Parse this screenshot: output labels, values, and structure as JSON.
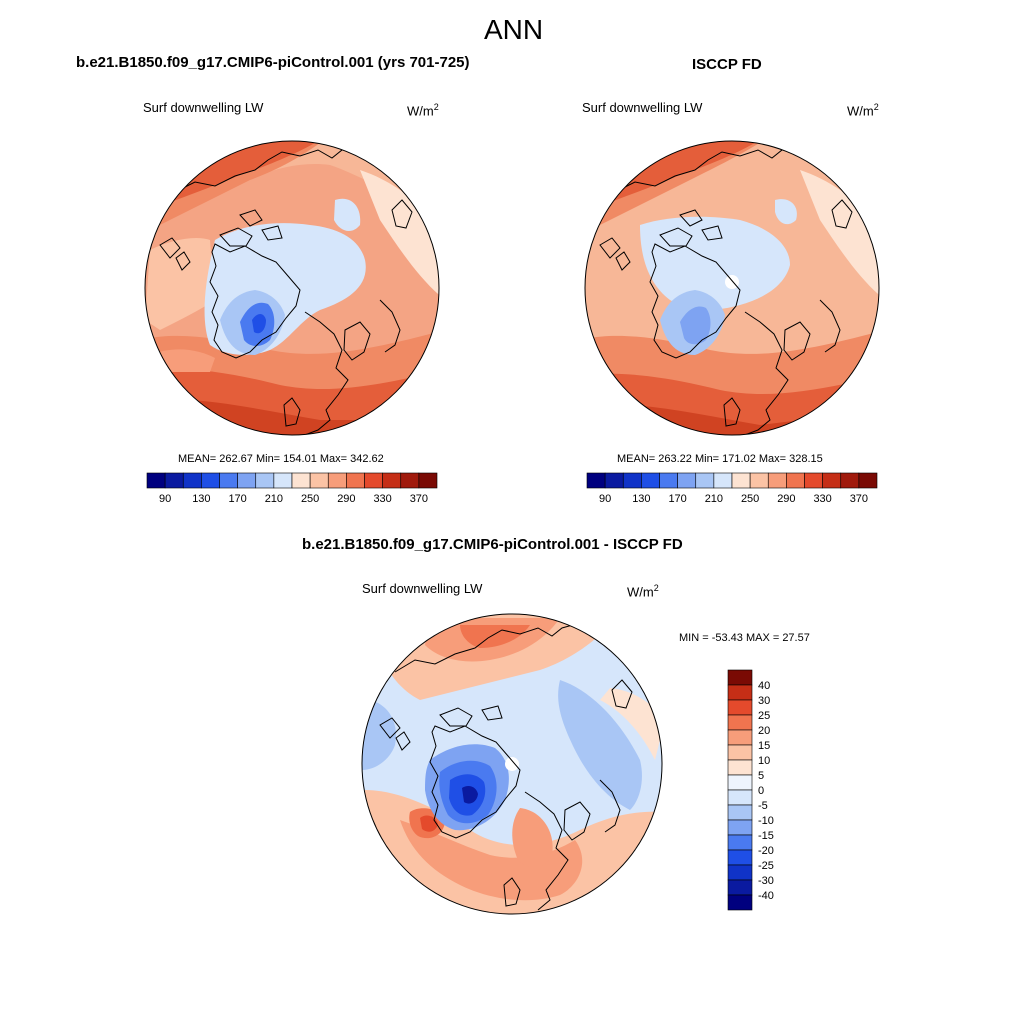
{
  "page_title": "ANN",
  "panels": [
    {
      "title": "b.e21.B1850.f09_g17.CMIP6-piControl.001 (yrs 701-725)",
      "variable": "Surf downwelling LW",
      "units_base": "W/m",
      "units_exp": "2",
      "stats": "MEAN= 262.67  Min= 154.01  Max= 342.62"
    },
    {
      "title": "ISCCP FD",
      "variable": "Surf downwelling LW",
      "units_base": "W/m",
      "units_exp": "2",
      "stats": "MEAN= 263.22  Min= 171.02  Max= 328.15"
    },
    {
      "title": "b.e21.B1850.f09_g17.CMIP6-piControl.001 - ISCCP FD",
      "variable": "Surf downwelling LW",
      "units_base": "W/m",
      "units_exp": "2",
      "stats": "MIN = -53.43 MAX =  27.57"
    }
  ],
  "abs_colorbar": {
    "colors": [
      "#00007f",
      "#0a1aa0",
      "#1033c8",
      "#1f4fe6",
      "#4a7af0",
      "#7ea3f2",
      "#a9c6f5",
      "#d6e6fb",
      "#fde3d2",
      "#fbc3a5",
      "#f79d7a",
      "#f0744f",
      "#e44a2c",
      "#c52e16",
      "#a01a0c",
      "#7a0a04"
    ],
    "labels": [
      "90",
      "130",
      "170",
      "210",
      "250",
      "290",
      "330",
      "370"
    ]
  },
  "diff_colorbar": {
    "colors": [
      "#00007f",
      "#0a1aa0",
      "#1033c8",
      "#1f4fe6",
      "#4a7af0",
      "#7ea3f2",
      "#a9c6f5",
      "#d6e6fb",
      "#eef4fd",
      "#fde3d2",
      "#fbc3a5",
      "#f79d7a",
      "#f0744f",
      "#e44a2c",
      "#c52e16",
      "#7a0a04"
    ],
    "labels": [
      "40",
      "30",
      "25",
      "20",
      "15",
      "10",
      "5",
      "0",
      "-5",
      "-10",
      "-15",
      "-20",
      "-25",
      "-30",
      "-40"
    ]
  }
}
